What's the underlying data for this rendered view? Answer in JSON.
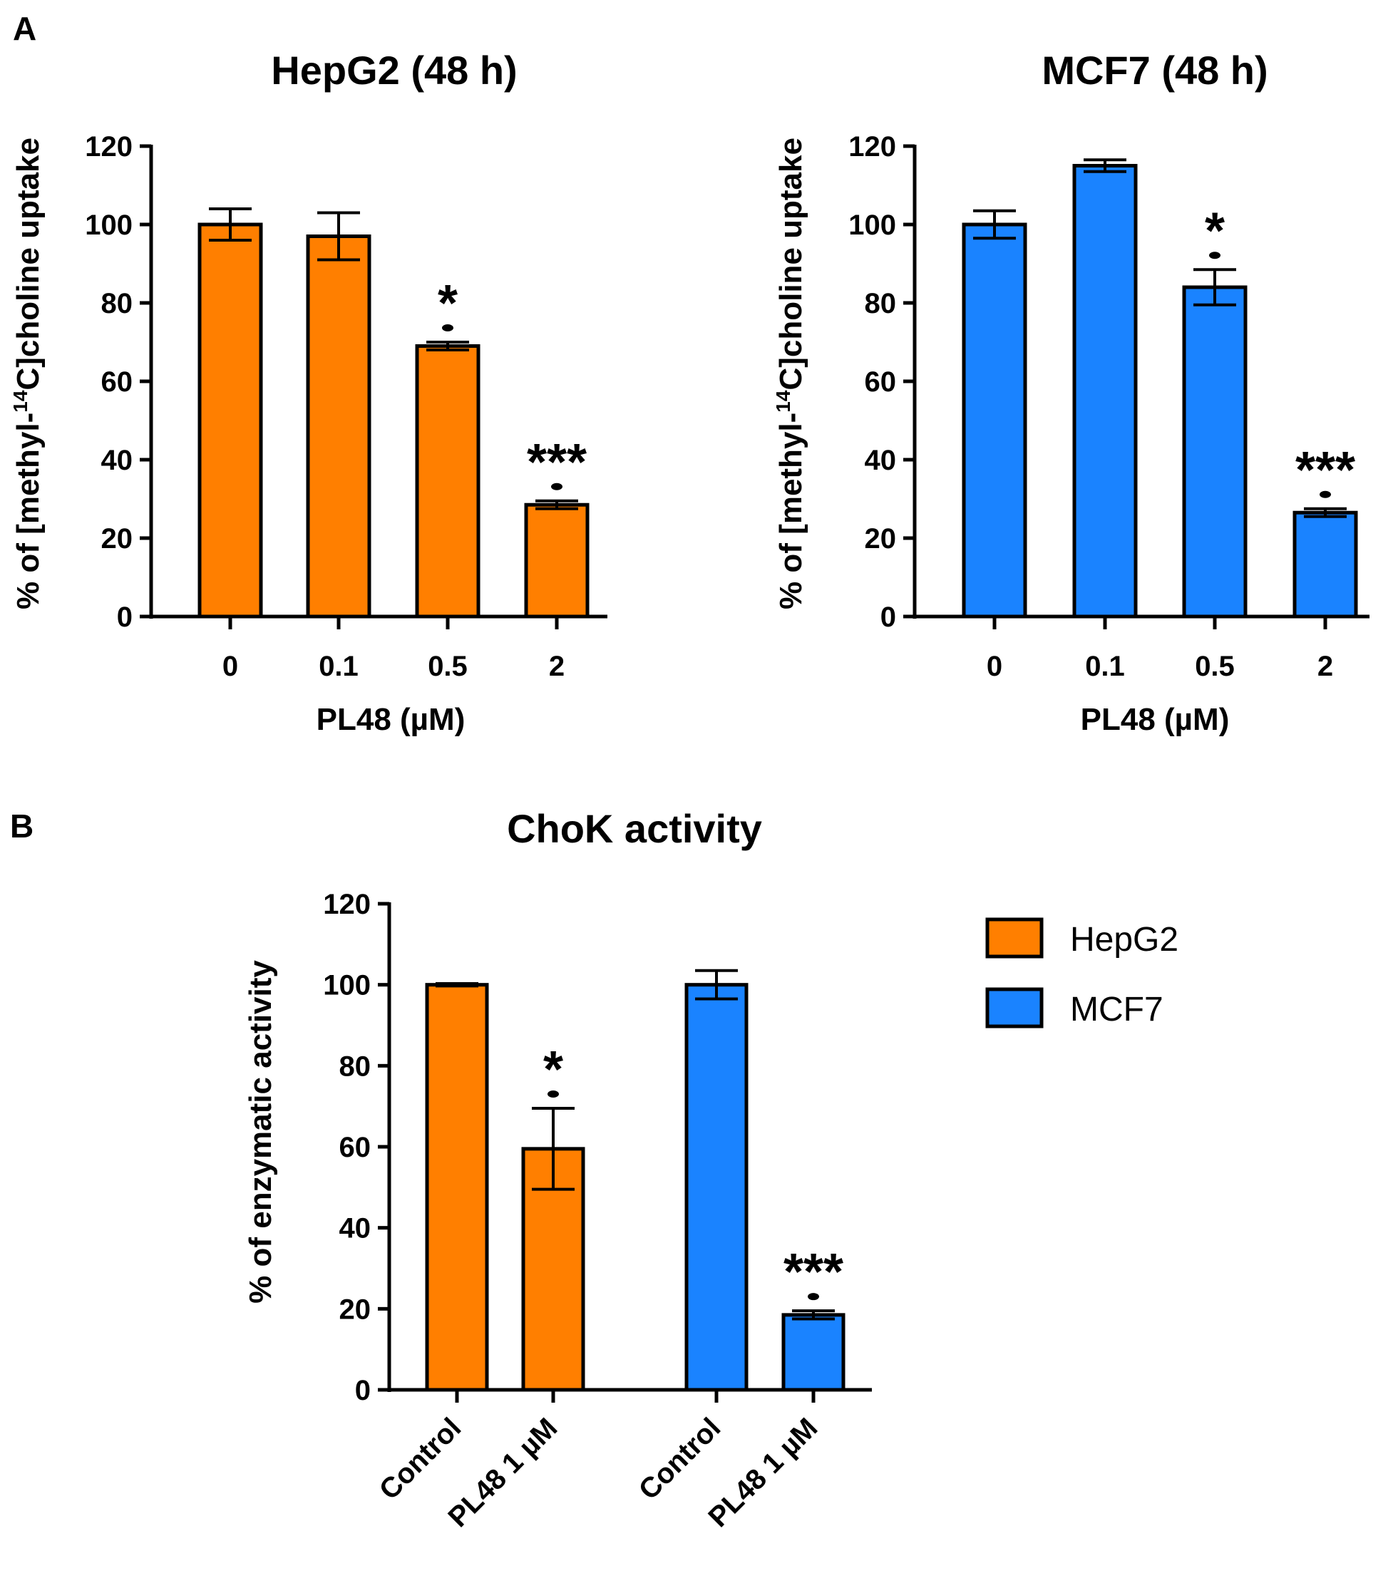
{
  "panels": {
    "a": "A",
    "b": "B"
  },
  "chart_data": [
    {
      "type": "bar",
      "title": "HepG2 (48 h)",
      "xlabel": "PL48 (µM)",
      "ylabel_pre": "% of [methyl-",
      "ylabel_sup": "14",
      "ylabel_post": "C]choline uptake",
      "categories": [
        "0",
        "0.1",
        "0.5",
        "2"
      ],
      "values": [
        100,
        97,
        69,
        28.5
      ],
      "errors": [
        4,
        6,
        1,
        1
      ],
      "significance": [
        "",
        "",
        "*",
        "***"
      ],
      "ylim": [
        0,
        120
      ],
      "yticks": [
        0,
        20,
        40,
        60,
        80,
        100,
        120
      ],
      "ytick_labels": [
        "0",
        "20",
        "40",
        "60",
        "80",
        "100",
        "120"
      ],
      "color": "#ff7f00"
    },
    {
      "type": "bar",
      "title": "MCF7 (48 h)",
      "xlabel": "PL48 (µM)",
      "ylabel_pre": "% of [methyl-",
      "ylabel_sup": "14",
      "ylabel_post": "C]choline uptake",
      "categories": [
        "0",
        "0.1",
        "0.5",
        "2"
      ],
      "values": [
        100,
        115,
        84,
        26.5
      ],
      "errors": [
        3.5,
        1.5,
        4.5,
        1
      ],
      "significance": [
        "",
        "",
        "*",
        "***"
      ],
      "ylim": [
        0,
        120
      ],
      "yticks": [
        0,
        20,
        40,
        60,
        80,
        100,
        120
      ],
      "ytick_labels": [
        "0",
        "20",
        "40",
        "60",
        "80",
        "100",
        "120"
      ],
      "color": "#1a83ff"
    },
    {
      "type": "bar",
      "title": "ChoK activity",
      "xlabel": "",
      "ylabel": "% of enzymatic activity",
      "categories": [
        "Control",
        "PL48 1 µM",
        "Control",
        "PL48 1 µM"
      ],
      "series_of_bar": [
        "HepG2",
        "HepG2",
        "MCF7",
        "MCF7"
      ],
      "values": [
        100,
        59.5,
        100,
        18.5
      ],
      "errors": [
        0.3,
        10,
        3.5,
        1
      ],
      "significance": [
        "",
        "*",
        "",
        "***"
      ],
      "ylim": [
        0,
        120
      ],
      "yticks": [
        0,
        20,
        40,
        60,
        80,
        100,
        120
      ],
      "ytick_labels": [
        "0",
        "20",
        "40",
        "60",
        "80",
        "100",
        "120"
      ],
      "legend": [
        {
          "name": "HepG2",
          "color": "#ff7f00"
        },
        {
          "name": "MCF7",
          "color": "#1a83ff"
        }
      ],
      "legend_position": "right"
    }
  ]
}
